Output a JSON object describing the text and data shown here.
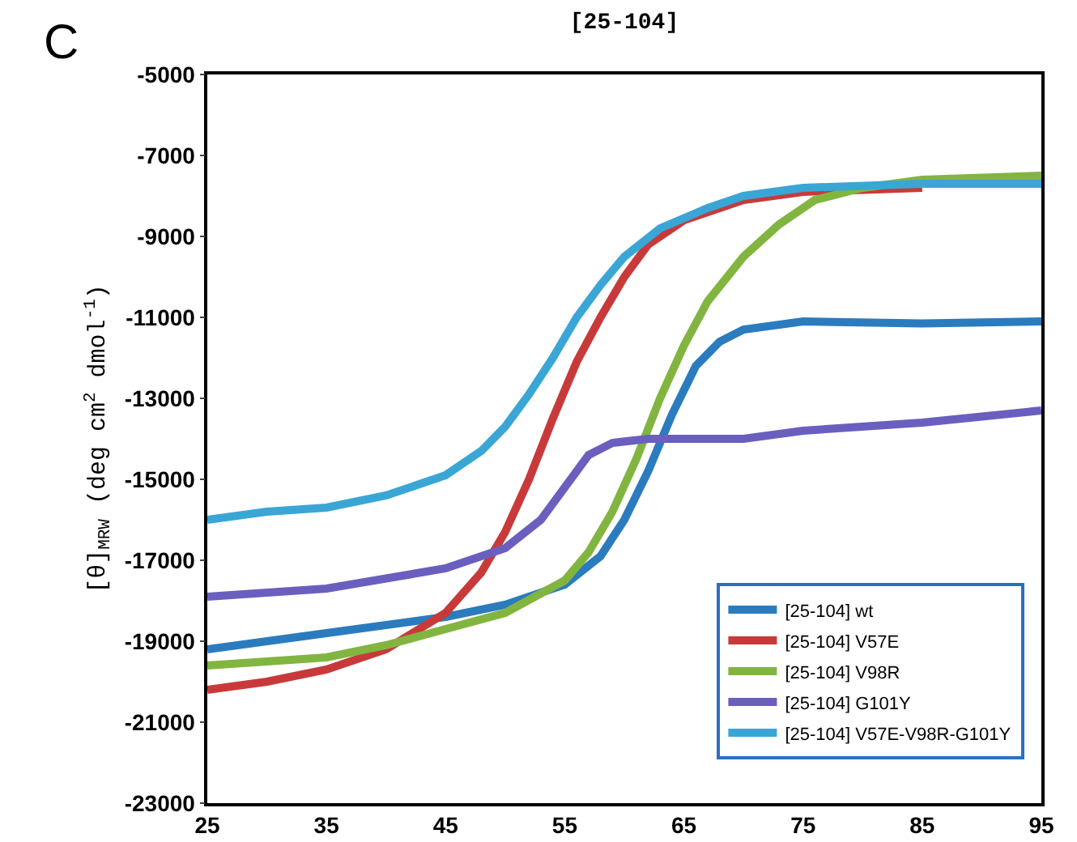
{
  "chart_data": {
    "type": "line",
    "title": "[25-104]",
    "ylabel": "[θ]$_{MRW}$ (deg cm$^{2}$ dmol$^{-1}$)",
    "annotations": [
      "C"
    ],
    "xlim": [
      25,
      95
    ],
    "xticks": [
      25,
      35,
      45,
      55,
      65,
      75,
      85,
      95
    ],
    "ylim": [
      -23000,
      -5000
    ],
    "yticks": [
      -23000,
      -21000,
      -19000,
      -17000,
      -15000,
      -13000,
      -11000,
      -9000,
      -7000,
      -5000
    ],
    "grid": false,
    "legend": "bottom right",
    "marker": "none",
    "line_style": "solid",
    "series": [
      {
        "name": "[25-104] wt",
        "color": "#2b7bbf",
        "x": [
          25,
          35,
          45,
          50,
          55,
          58,
          60,
          62,
          64,
          66,
          68,
          70,
          75,
          85,
          95
        ],
        "values": [
          -19200,
          -18800,
          -18400,
          -18100,
          -17600,
          -16900,
          -16000,
          -14800,
          -13400,
          -12200,
          -11600,
          -11300,
          -11100,
          -11150,
          -11100
        ]
      },
      {
        "name": "[25-104] V57E",
        "color": "#c83a3a",
        "x": [
          25,
          30,
          35,
          40,
          45,
          48,
          50,
          52,
          54,
          56,
          58,
          60,
          62,
          65,
          70,
          75,
          85
        ],
        "values": [
          -20200,
          -20000,
          -19700,
          -19200,
          -18300,
          -17300,
          -16300,
          -15000,
          -13500,
          -12100,
          -11000,
          -10000,
          -9200,
          -8600,
          -8100,
          -7900,
          -7800
        ]
      },
      {
        "name": "[25-104] V98R",
        "color": "#82b540",
        "x": [
          25,
          35,
          40,
          45,
          50,
          55,
          57,
          59,
          61,
          63,
          65,
          67,
          70,
          73,
          76,
          80,
          85,
          95
        ],
        "values": [
          -19600,
          -19400,
          -19100,
          -18700,
          -18300,
          -17500,
          -16800,
          -15800,
          -14500,
          -13000,
          -11700,
          -10600,
          -9500,
          -8700,
          -8100,
          -7800,
          -7600,
          -7500
        ]
      },
      {
        "name": "[25-104] G101Y",
        "color": "#6a5fbf",
        "x": [
          25,
          35,
          45,
          50,
          53,
          55,
          57,
          59,
          62,
          70,
          75,
          85,
          95
        ],
        "values": [
          -17900,
          -17700,
          -17200,
          -16700,
          -16000,
          -15200,
          -14400,
          -14100,
          -14000,
          -14000,
          -13800,
          -13600,
          -13300
        ]
      },
      {
        "name": "[25-104] V57E-V98R-G101Y",
        "color": "#3aa6d6",
        "x": [
          25,
          30,
          35,
          40,
          45,
          48,
          50,
          52,
          54,
          56,
          58,
          60,
          63,
          67,
          70,
          75,
          85,
          95
        ],
        "values": [
          -16000,
          -15800,
          -15700,
          -15400,
          -14900,
          -14300,
          -13700,
          -12900,
          -12000,
          -11000,
          -10200,
          -9500,
          -8800,
          -8300,
          -8000,
          -7800,
          -7700,
          -7700
        ]
      }
    ]
  }
}
